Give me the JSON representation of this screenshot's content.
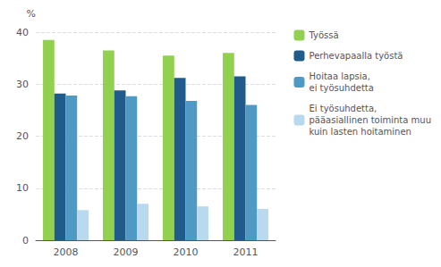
{
  "chart_data": {
    "type": "bar",
    "ylabel": "%",
    "categories": [
      "2008",
      "2009",
      "2010",
      "2011"
    ],
    "series": [
      {
        "name": "Työssä",
        "color": "#92d050",
        "values": [
          38.5,
          36.5,
          35.5,
          36.0
        ]
      },
      {
        "name": "Perhevapaalla työstä",
        "color": "#1f5c8b",
        "values": [
          28.2,
          28.8,
          31.2,
          31.5
        ]
      },
      {
        "name": "Hoitaa lapsia,\nei työsuhdetta",
        "color": "#4f9ac4",
        "values": [
          27.8,
          27.7,
          26.8,
          26.0
        ]
      },
      {
        "name": "Ei työsuhdetta,\npääasiallinen toiminta muu\nkuin lasten hoitaminen",
        "color": "#b8d9ee",
        "values": [
          5.8,
          7.0,
          6.5,
          6.0
        ]
      }
    ],
    "ylim": [
      0,
      40
    ],
    "yticks": [
      0,
      10,
      20,
      30,
      40
    ],
    "grid": true,
    "legend": "right"
  }
}
